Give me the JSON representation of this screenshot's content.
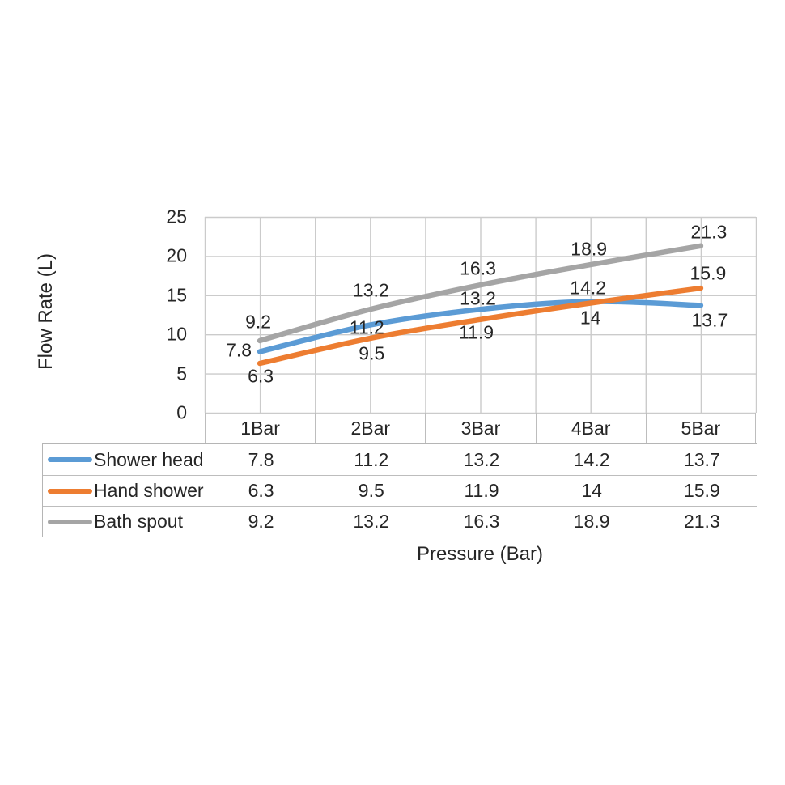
{
  "chart_data": {
    "type": "line",
    "categories": [
      "1Bar",
      "2Bar",
      "3Bar",
      "4Bar",
      "5Bar"
    ],
    "series": [
      {
        "name": "Shower head",
        "color": "#5B9BD5",
        "values": [
          7.8,
          11.2,
          13.2,
          14.2,
          13.7
        ],
        "label_offsets": [
          [
            -26,
            -1
          ],
          [
            -4,
            3
          ],
          [
            -3,
            -13
          ],
          [
            -3,
            -17
          ],
          [
            11,
            19
          ]
        ]
      },
      {
        "name": "Hand shower",
        "color": "#ED7D31",
        "values": [
          6.3,
          9.5,
          11.9,
          14,
          15.9
        ],
        "label_offsets": [
          [
            1,
            16
          ],
          [
            2,
            19
          ],
          [
            -5,
            16
          ],
          [
            0,
            19
          ],
          [
            9,
            -18
          ]
        ]
      },
      {
        "name": "Bath spout",
        "color": "#A5A5A5",
        "values": [
          9.2,
          13.2,
          16.3,
          18.9,
          21.3
        ],
        "label_offsets": [
          [
            -2,
            -23
          ],
          [
            1,
            -23
          ],
          [
            -3,
            -20
          ],
          [
            -2,
            -19
          ],
          [
            10,
            -17
          ]
        ]
      }
    ],
    "title": "",
    "xlabel": "Pressure (Bar)",
    "ylabel": "Flow Rate (L)",
    "ylim": [
      0,
      25
    ],
    "yticks": [
      0,
      5,
      10,
      15,
      20,
      25
    ],
    "grid": true,
    "smooth_lines": true,
    "legend_position": "data-table-left",
    "colors": {
      "grid": "#cbcbcb",
      "table_border": "#bdbdbd",
      "text": "#262626",
      "background": "#ffffff"
    }
  }
}
